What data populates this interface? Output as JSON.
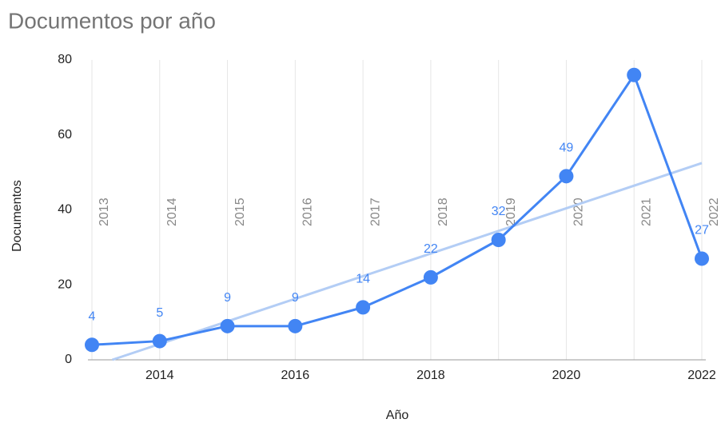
{
  "chart_data": {
    "type": "line",
    "title": "Documentos por año",
    "x_label": "Año",
    "y_label": "Documentos",
    "x": [
      2013,
      2014,
      2015,
      2016,
      2017,
      2018,
      2019,
      2020,
      2021,
      2022
    ],
    "series": [
      {
        "name": "Documentos",
        "color": "#4285f4",
        "values": [
          4,
          5,
          9,
          9,
          14,
          22,
          32,
          49,
          76,
          27
        ],
        "value_labels": [
          "4",
          "5",
          "9",
          "9",
          "14",
          "22",
          "32",
          "49",
          null,
          "27"
        ]
      }
    ],
    "vertical_labels": [
      "2013",
      "2014",
      "2015",
      "2016",
      "2017",
      "2018",
      "2019",
      "2020",
      "2021",
      "2022"
    ],
    "trendline": {
      "color": "#b3cdf5",
      "x": [
        2013.3,
        2022
      ],
      "values": [
        0,
        52.5
      ]
    },
    "xlim": [
      2013,
      2022
    ],
    "xticks": [
      2014,
      2016,
      2018,
      2020,
      2022
    ],
    "ylim": [
      0,
      80
    ],
    "yticks": [
      0,
      20,
      40,
      60,
      80
    ],
    "grid": true
  }
}
